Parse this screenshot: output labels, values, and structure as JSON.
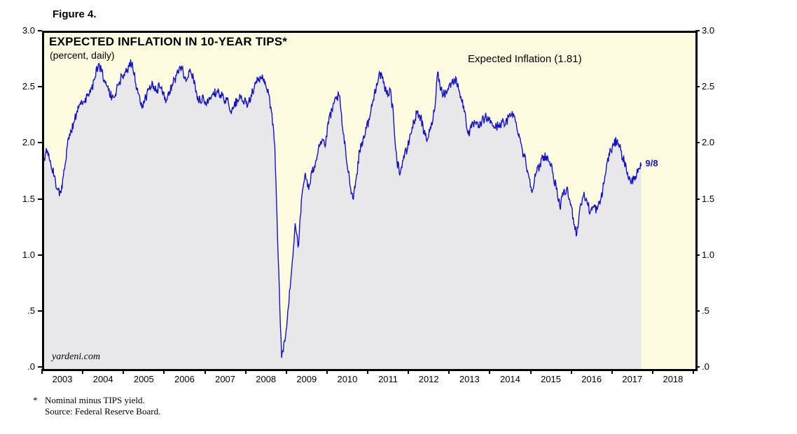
{
  "figure": {
    "caption": "Figure 4."
  },
  "footnote": {
    "marker": "*",
    "line1": "Nominal minus TIPS yield.",
    "line2": "Source: Federal Reserve Board."
  },
  "chart_data": {
    "type": "line",
    "title": "EXPECTED INFLATION IN 10-YEAR TIPS*",
    "subtitle": "(percent, daily)",
    "series_label": "Expected Inflation (1.81)",
    "last_point_label": "9/8",
    "last_value": 1.81,
    "last_date_label": "9/8",
    "watermark": "yardeni.com",
    "x_start": 2003,
    "x_end": 2019,
    "points_per_year": 12,
    "ylim": [
      0,
      3
    ],
    "y_tick_values": [
      3.0,
      2.5,
      2.0,
      1.5,
      1.0,
      0.5,
      0.0
    ],
    "y_tick_labels": [
      "3.0",
      "2.5",
      "2.0",
      "1.5",
      "1.0",
      ".5",
      ".0"
    ],
    "x_year_labels": [
      "2003",
      "2004",
      "2005",
      "2006",
      "2007",
      "2008",
      "2009",
      "2010",
      "2011",
      "2012",
      "2013",
      "2014",
      "2015",
      "2016",
      "2017",
      "2018"
    ],
    "grid": false,
    "legend_position": "top-right-inside",
    "colors": {
      "line": "#1212CC",
      "area_fill": "#E8E8EA",
      "plot_bg": "#FDFCE0",
      "frame": "#000000",
      "annotation_blue": "#1212CC"
    },
    "values": [
      1.88,
      1.95,
      1.82,
      1.72,
      1.6,
      1.57,
      1.78,
      2.05,
      2.12,
      2.22,
      2.35,
      2.4,
      2.38,
      2.45,
      2.5,
      2.6,
      2.72,
      2.65,
      2.55,
      2.48,
      2.42,
      2.45,
      2.55,
      2.62,
      2.65,
      2.7,
      2.74,
      2.55,
      2.45,
      2.35,
      2.42,
      2.5,
      2.55,
      2.48,
      2.52,
      2.45,
      2.4,
      2.48,
      2.55,
      2.62,
      2.7,
      2.65,
      2.58,
      2.68,
      2.6,
      2.45,
      2.4,
      2.42,
      2.38,
      2.42,
      2.45,
      2.48,
      2.45,
      2.4,
      2.42,
      2.3,
      2.35,
      2.4,
      2.42,
      2.38,
      2.35,
      2.45,
      2.52,
      2.58,
      2.6,
      2.55,
      2.5,
      2.3,
      2.0,
      1.0,
      0.1,
      0.25,
      0.55,
      0.9,
      1.3,
      1.1,
      1.55,
      1.75,
      1.6,
      1.75,
      1.85,
      2.0,
      2.05,
      2.0,
      2.25,
      2.3,
      2.42,
      2.44,
      2.15,
      1.9,
      1.7,
      1.52,
      1.7,
      1.95,
      2.05,
      2.15,
      2.25,
      2.4,
      2.55,
      2.64,
      2.55,
      2.45,
      2.5,
      2.25,
      1.85,
      1.75,
      1.9,
      1.95,
      2.1,
      2.2,
      2.3,
      2.25,
      2.1,
      2.05,
      2.15,
      2.3,
      2.65,
      2.5,
      2.45,
      2.5,
      2.55,
      2.58,
      2.55,
      2.4,
      2.3,
      2.1,
      2.15,
      2.2,
      2.15,
      2.2,
      2.25,
      2.22,
      2.2,
      2.15,
      2.18,
      2.2,
      2.18,
      2.25,
      2.3,
      2.2,
      2.1,
      1.95,
      1.85,
      1.7,
      1.6,
      1.75,
      1.8,
      1.9,
      1.9,
      1.85,
      1.75,
      1.6,
      1.45,
      1.55,
      1.6,
      1.5,
      1.35,
      1.2,
      1.45,
      1.55,
      1.5,
      1.4,
      1.45,
      1.42,
      1.5,
      1.65,
      1.85,
      1.95,
      2.0,
      2.05,
      1.95,
      1.85,
      1.75,
      1.65,
      1.72,
      1.75,
      1.81
    ]
  }
}
